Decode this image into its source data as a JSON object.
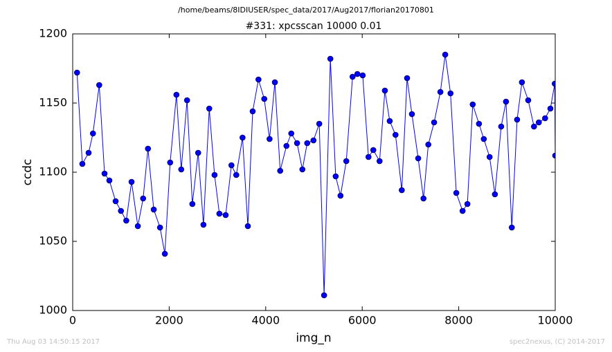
{
  "chart_data": {
    "type": "line",
    "suptitle": "/home/beams/8IDIUSER/spec_data/2017/Aug2017/florian20170801",
    "title": "#331: xpcsscan 10000 0.01",
    "x_label": "img_n",
    "y_label": "ccdc",
    "footer_left": "Thu Aug 03 14:50:15 2017",
    "footer_right": "spec2nexus, (C) 2014-2017",
    "xlim": [
      0,
      10000
    ],
    "ylim": [
      1000,
      1200
    ],
    "xticks": [
      0,
      2000,
      4000,
      6000,
      8000,
      10000
    ],
    "yticks": [
      1000,
      1050,
      1100,
      1150,
      1200
    ],
    "series": [
      {
        "color": "#0000ff",
        "x": [
          90,
          200,
          330,
          420,
          550,
          660,
          760,
          890,
          1000,
          1110,
          1220,
          1350,
          1460,
          1560,
          1680,
          1810,
          1910,
          2020,
          2150,
          2250,
          2370,
          2480,
          2600,
          2710,
          2830,
          2940,
          3040,
          3170,
          3290,
          3390,
          3520,
          3630,
          3730,
          3850,
          3970,
          4080,
          4190,
          4300,
          4430,
          4530,
          4650,
          4760,
          4860,
          4990,
          5110,
          5210,
          5340,
          5450,
          5550,
          5670,
          5800,
          5900,
          6010,
          6130,
          6230,
          6360,
          6470,
          6570,
          6690,
          6820,
          6930,
          7030,
          7160,
          7270,
          7370,
          7490,
          7620,
          7720,
          7830,
          7950,
          8080,
          8180,
          8290,
          8420,
          8520,
          8640,
          8750,
          8880,
          8980,
          9100,
          9210,
          9310,
          9440,
          9560,
          9660,
          9790,
          9900,
          9990,
          10000
        ],
        "values": [
          1172,
          1106,
          1114,
          1128,
          1163,
          1099,
          1094,
          1079,
          1072,
          1065,
          1093,
          1061,
          1081,
          1117,
          1073,
          1060,
          1041,
          1107,
          1156,
          1102,
          1152,
          1077,
          1114,
          1062,
          1146,
          1098,
          1070,
          1069,
          1105,
          1098,
          1125,
          1061,
          1144,
          1167,
          1153,
          1124,
          1165,
          1101,
          1119,
          1128,
          1121,
          1102,
          1121,
          1123,
          1135,
          1011,
          1182,
          1097,
          1083,
          1108,
          1169,
          1171,
          1170,
          1111,
          1116,
          1108,
          1159,
          1137,
          1127,
          1087,
          1168,
          1142,
          1110,
          1081,
          1120,
          1136,
          1158,
          1185,
          1157,
          1085,
          1072,
          1077,
          1149,
          1135,
          1124,
          1111,
          1084,
          1133,
          1151,
          1060,
          1138,
          1165,
          1152,
          1133,
          1136,
          1139,
          1146,
          1164,
          1112
        ]
      }
    ]
  }
}
